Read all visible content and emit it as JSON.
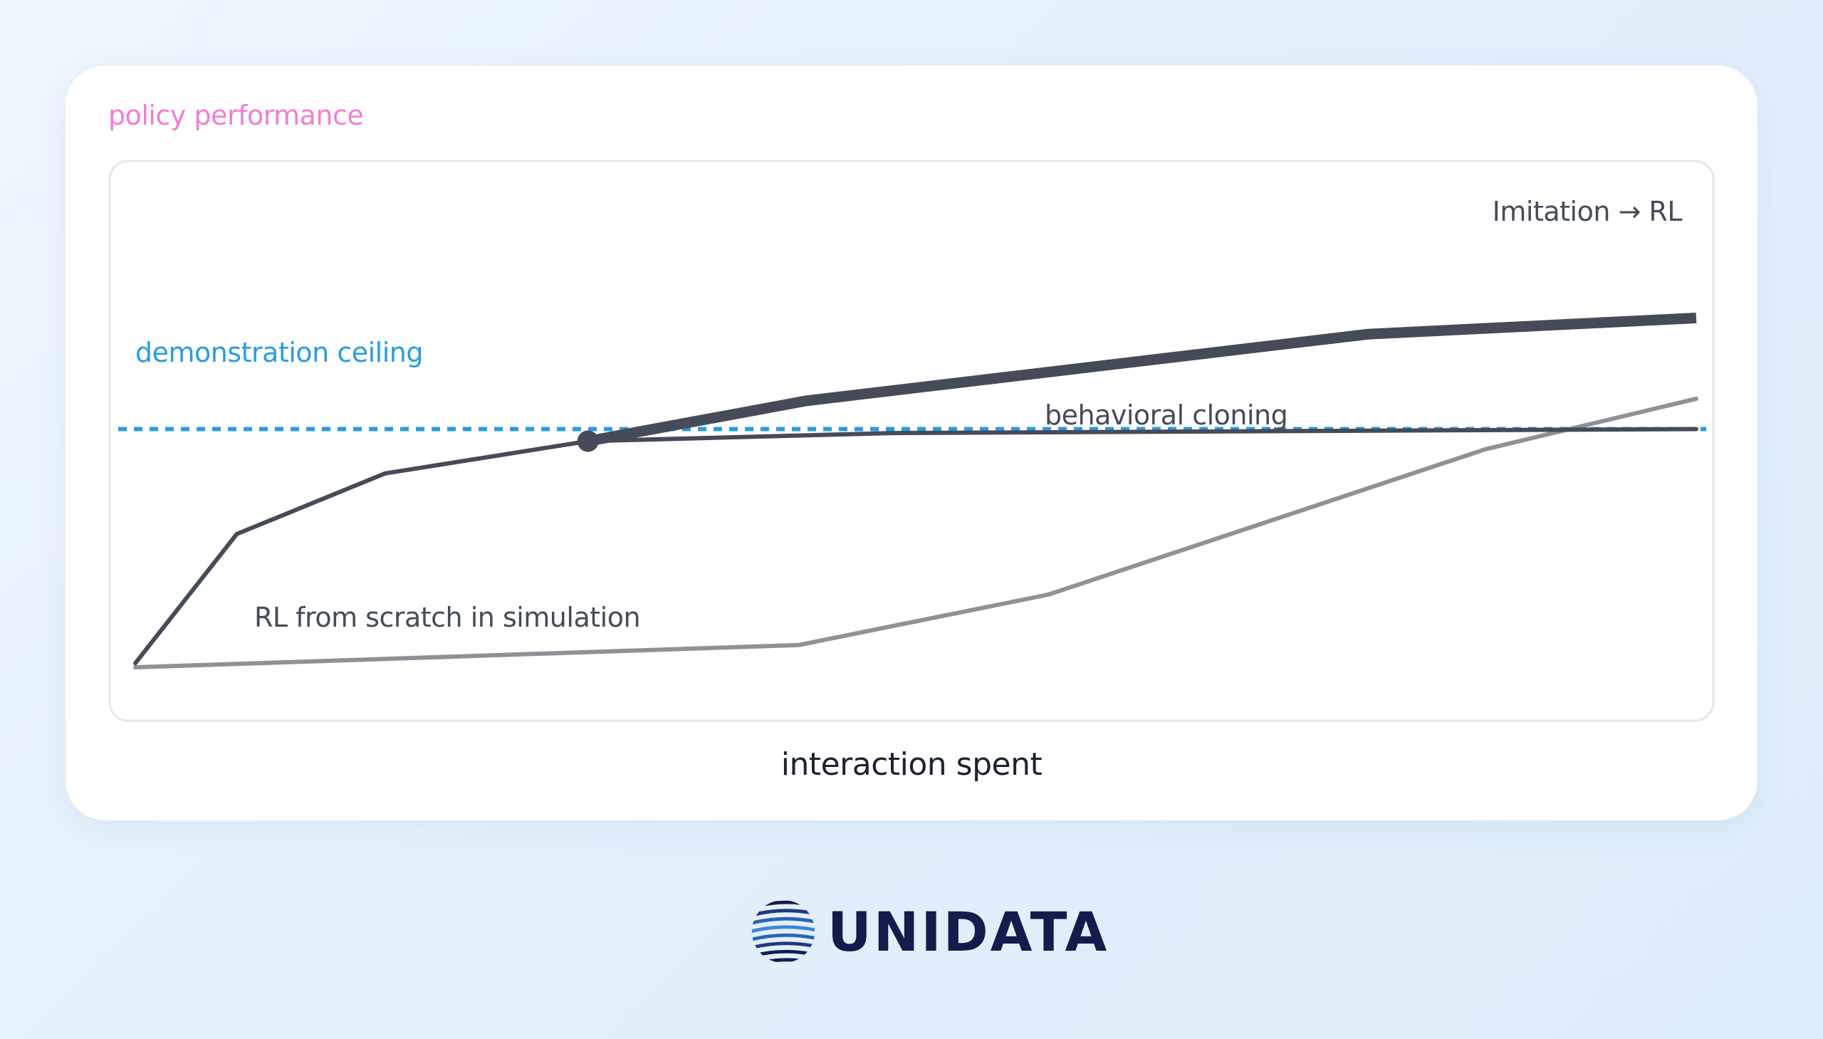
{
  "chart_data": {
    "type": "line",
    "title": "",
    "ylabel": "policy performance",
    "xlabel": "interaction spent",
    "xlim": [
      0,
      100
    ],
    "ylim": [
      0,
      100
    ],
    "grid": false,
    "legend": "none",
    "series": [
      {
        "name": "behavioral cloning",
        "color": "#454b58",
        "points": [
          [
            0,
            1
          ],
          [
            6.5,
            33
          ],
          [
            16,
            48
          ],
          [
            29,
            56
          ],
          [
            48.5,
            58
          ],
          [
            100,
            59
          ]
        ]
      },
      {
        "name": "Imitation → RL",
        "color": "#454b58",
        "start_marker": true,
        "points": [
          [
            29,
            56
          ],
          [
            43,
            66
          ],
          [
            79,
            82.5
          ],
          [
            100,
            86.5
          ]
        ]
      },
      {
        "name": "RL from scratch in simulation",
        "color": "#8f9198",
        "points": [
          [
            0,
            0
          ],
          [
            42.5,
            5.5
          ],
          [
            58.5,
            18
          ],
          [
            86.5,
            54
          ],
          [
            100,
            66.5
          ]
        ]
      }
    ],
    "reference_lines": [
      {
        "name": "demonstration ceiling",
        "y": 59,
        "style": "dotted",
        "color": "#2b9be0"
      }
    ]
  },
  "brand": {
    "name": "UNIDATA",
    "icon": "globe-icon"
  }
}
